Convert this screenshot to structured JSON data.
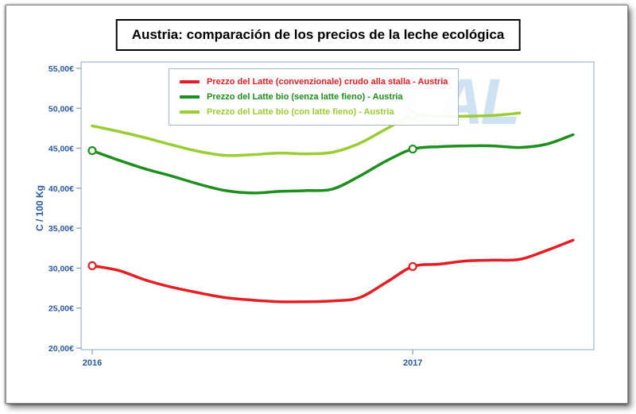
{
  "title": "Austria: comparación de los precios de la leche ecológica",
  "watermark": "CLAL",
  "colors": {
    "axis_text": "#2a5a9f",
    "plot_border": "#9fb8cf",
    "tick_mark": "#7f9db9",
    "watermark": "#cfe2f3",
    "title_border": "#000000",
    "series_red": "#e31e24",
    "series_dark_green": "#1e8f1e",
    "series_light_green": "#9acd32"
  },
  "chart_data": {
    "type": "line",
    "title": "Austria: comparación de los precios de la leche ecológica",
    "ylabel": "C / 100 Kg",
    "ylim": [
      20,
      55
    ],
    "grid": false,
    "legend_position": "top-center",
    "y_tick_values": [
      55,
      50,
      45,
      40,
      35,
      30,
      25,
      20
    ],
    "y_tick_labels": [
      "55,00€",
      "50,00€",
      "45,00€",
      "40,00€",
      "35,00€",
      "30,00€",
      "25,00€",
      "20,00€"
    ],
    "x_note": "monthly points, index 0 = Jan 2016",
    "x_ticks": [
      {
        "index": 0,
        "label": "2016"
      },
      {
        "index": 12,
        "label": "2017"
      }
    ],
    "series": [
      {
        "label": "Prezzo del Latte (convenzionale) crudo alla stalla - Austria",
        "color": "#e31e24",
        "marker_indices": [
          0,
          12
        ],
        "x": [
          0,
          1,
          2,
          3,
          4,
          5,
          6,
          7,
          8,
          9,
          10,
          11,
          12,
          13,
          14,
          15,
          16,
          17,
          18
        ],
        "values": [
          30.3,
          29.7,
          28.5,
          27.6,
          26.9,
          26.3,
          26.0,
          25.8,
          25.8,
          25.9,
          26.3,
          28.2,
          30.2,
          30.5,
          30.9,
          31.0,
          31.1,
          32.2,
          33.5
        ]
      },
      {
        "label": "Prezzo del Latte bio (senza latte fieno) - Austria",
        "color": "#1e8f1e",
        "marker_indices": [
          0,
          12
        ],
        "x": [
          0,
          1,
          2,
          3,
          4,
          5,
          6,
          7,
          8,
          9,
          10,
          11,
          12,
          13,
          14,
          15,
          16,
          17,
          18
        ],
        "values": [
          44.7,
          43.5,
          42.4,
          41.5,
          40.5,
          39.7,
          39.4,
          39.6,
          39.7,
          39.9,
          41.5,
          43.4,
          44.9,
          45.2,
          45.3,
          45.3,
          45.1,
          45.5,
          46.7
        ]
      },
      {
        "label": "Prezzo del Latte bio (con latte fieno) - Austria",
        "color": "#9acd32",
        "marker_indices": [
          12
        ],
        "x": [
          0,
          1,
          2,
          3,
          4,
          5,
          6,
          7,
          8,
          9,
          10,
          11,
          12,
          13,
          14,
          15,
          16
        ],
        "values": [
          47.8,
          47.1,
          46.3,
          45.4,
          44.6,
          44.1,
          44.2,
          44.4,
          44.3,
          44.5,
          45.6,
          47.4,
          49.1,
          49.0,
          49.0,
          49.1,
          49.4
        ]
      }
    ]
  }
}
